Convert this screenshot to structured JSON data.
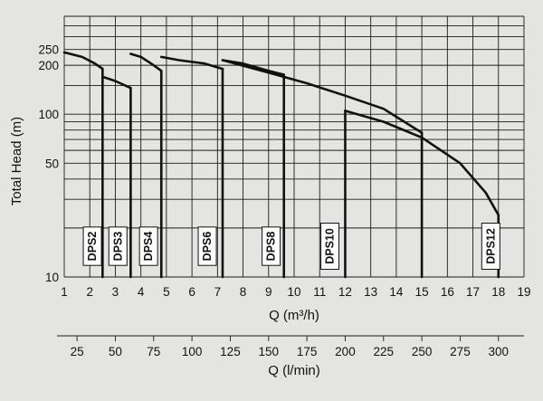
{
  "chart_data": {
    "type": "line",
    "title": "",
    "xlabel": "Q (m³/h)",
    "ylabel": "Total Head (m)",
    "xlim": [
      1,
      19
    ],
    "ylim": [
      10,
      400
    ],
    "y_scale": "log",
    "grid": true,
    "x_ticks": [
      "1",
      "2",
      "3",
      "4",
      "5",
      "6",
      "7",
      "8",
      "9",
      "10",
      "11",
      "12",
      "13",
      "14",
      "15",
      "16",
      "17",
      "18",
      "19"
    ],
    "y_ticks": [
      {
        "value": 10,
        "label": "10"
      },
      {
        "value": 50,
        "label": "50"
      },
      {
        "value": 100,
        "label": "100"
      },
      {
        "value": 200,
        "label": "200"
      },
      {
        "value": 250,
        "label": "250"
      }
    ],
    "secondary_x": {
      "label": "Q (l/min)",
      "ticks": [
        {
          "value": 25,
          "label": "25"
        },
        {
          "value": 50,
          "label": "50"
        },
        {
          "value": 75,
          "label": "75"
        },
        {
          "value": 100,
          "label": "100"
        },
        {
          "value": 125,
          "label": "125"
        },
        {
          "value": 150,
          "label": "150"
        },
        {
          "value": 175,
          "label": "175"
        },
        {
          "value": 200,
          "label": "200"
        },
        {
          "value": 225,
          "label": "225"
        },
        {
          "value": 250,
          "label": "250"
        },
        {
          "value": 275,
          "label": "275"
        },
        {
          "value": 300,
          "label": "300"
        }
      ]
    },
    "series": [
      {
        "name": "DPS2",
        "x_max": 2.5,
        "x": [
          1.0,
          1.7,
          2.2,
          2.5
        ],
        "y": [
          240,
          225,
          205,
          190
        ]
      },
      {
        "name": "DPS3",
        "x_max": 3.6,
        "x": [
          2.5,
          3.0,
          3.6
        ],
        "y": [
          170,
          160,
          145
        ]
      },
      {
        "name": "DPS4",
        "x_max": 4.8,
        "x": [
          3.6,
          4.0,
          4.4,
          4.8
        ],
        "y": [
          235,
          225,
          205,
          185
        ]
      },
      {
        "name": "DPS6",
        "x_max": 7.2,
        "x": [
          4.8,
          5.5,
          6.5,
          7.2
        ],
        "y": [
          225,
          215,
          205,
          190
        ]
      },
      {
        "name": "DPS8",
        "x_max": 9.6,
        "x": [
          7.2,
          8.0,
          9.0,
          9.6
        ],
        "y": [
          215,
          205,
          185,
          175
        ]
      },
      {
        "name": "DPS10",
        "x_max": 15.0,
        "x": [
          7.2,
          9.0,
          10.5,
          12.0,
          13.5,
          15.0
        ],
        "y": [
          215,
          180,
          155,
          130,
          108,
          77
        ]
      },
      {
        "name": "DPS12",
        "x_max": 18.0,
        "x": [
          12.0,
          13.5,
          15.0,
          16.5,
          17.5,
          18.0
        ],
        "y": [
          105,
          90,
          72,
          50,
          33,
          24
        ]
      }
    ],
    "model_labels": [
      {
        "text": "DPS2",
        "x": 2.1
      },
      {
        "text": "DPS3",
        "x": 3.1
      },
      {
        "text": "DPS4",
        "x": 4.3
      },
      {
        "text": "DPS6",
        "x": 6.6
      },
      {
        "text": "DPS8",
        "x": 9.1
      },
      {
        "text": "DPS10",
        "x": 11.4
      },
      {
        "text": "DPS12",
        "x": 17.7
      }
    ]
  }
}
